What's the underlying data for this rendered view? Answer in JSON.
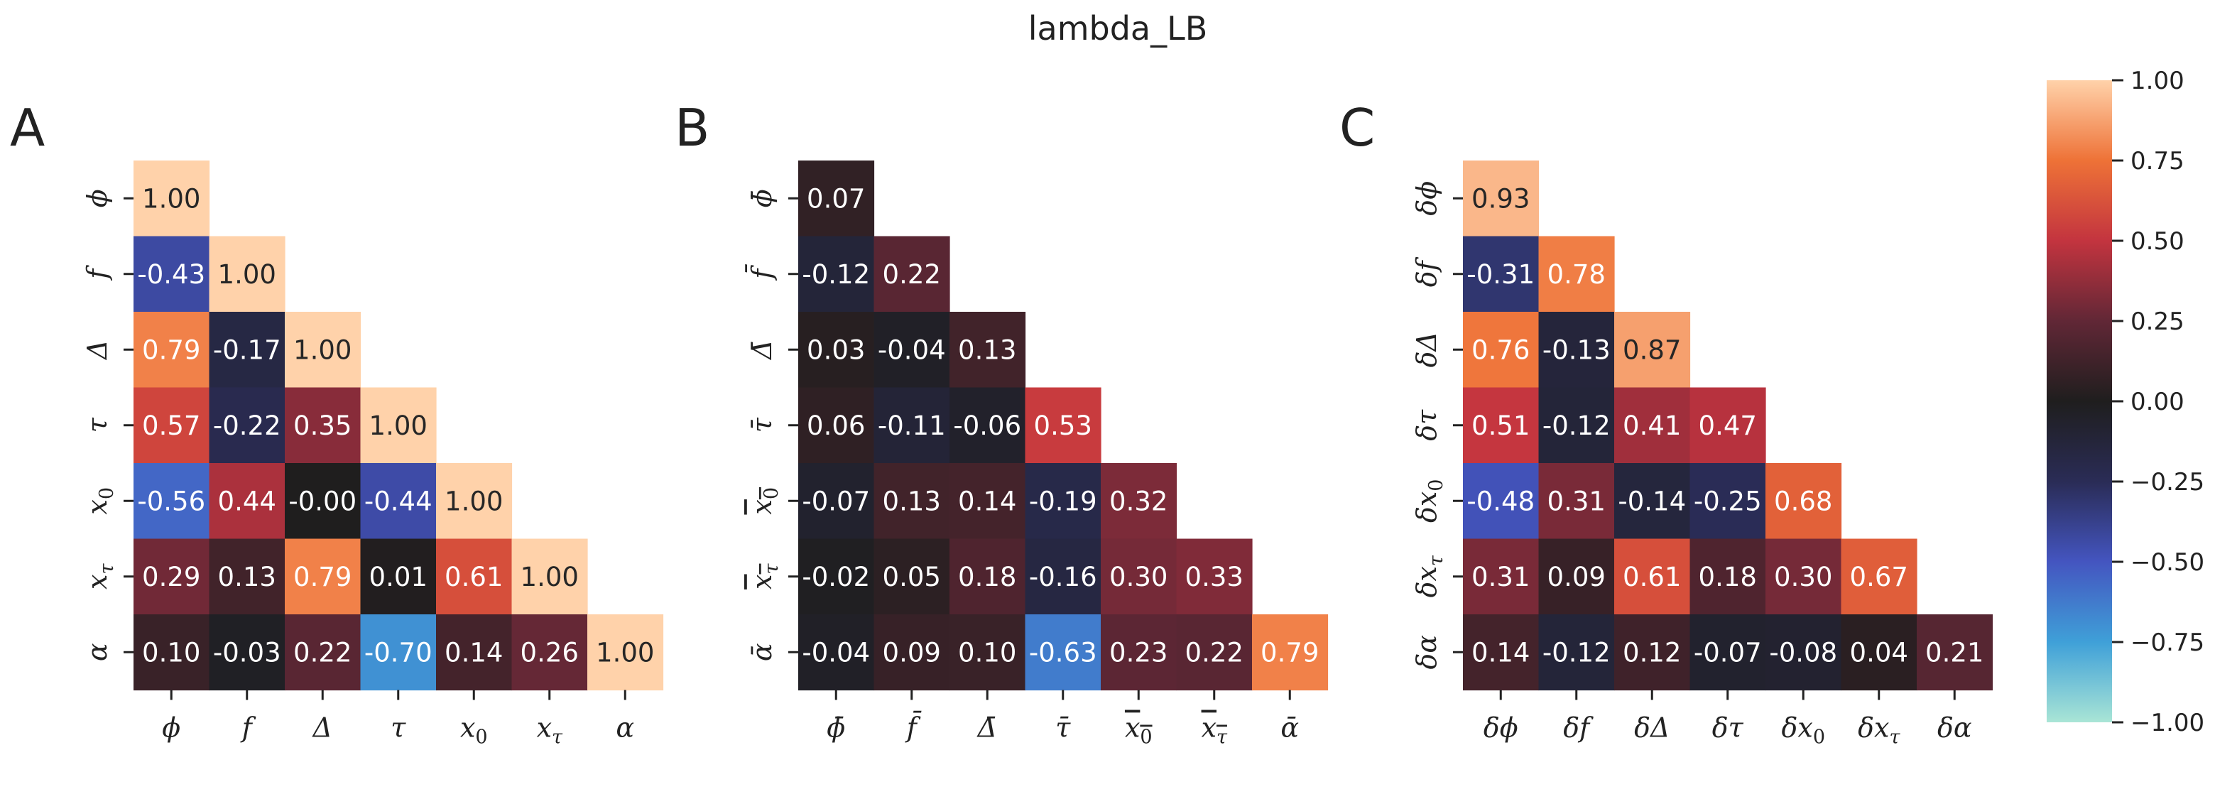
{
  "title": "lambda_LB",
  "chart_data": [
    {
      "type": "heatmap",
      "panel": "A",
      "mask": "lower-triangle",
      "categories": [
        "ϕ",
        "f",
        "Δ",
        "τ",
        "x₀",
        "x_τ",
        "α"
      ],
      "values": [
        [
          1.0
        ],
        [
          -0.43,
          1.0
        ],
        [
          0.79,
          -0.17,
          1.0
        ],
        [
          0.57,
          -0.22,
          0.35,
          1.0
        ],
        [
          -0.56,
          0.44,
          -0.0,
          -0.44,
          1.0
        ],
        [
          0.29,
          0.13,
          0.79,
          0.01,
          0.61,
          1.0
        ],
        [
          0.1,
          -0.03,
          0.22,
          -0.7,
          0.14,
          0.26,
          1.0
        ]
      ],
      "labels": [
        [
          "1.00"
        ],
        [
          "-0.43",
          "1.00"
        ],
        [
          "0.79",
          "-0.17",
          "1.00"
        ],
        [
          "0.57",
          "-0.22",
          "0.35",
          "1.00"
        ],
        [
          "-0.56",
          "0.44",
          "-0.00",
          "-0.44",
          "1.00"
        ],
        [
          "0.29",
          "0.13",
          "0.79",
          "0.01",
          "0.61",
          "1.00"
        ],
        [
          "0.10",
          "-0.03",
          "0.22",
          "-0.70",
          "0.14",
          "0.26",
          "1.00"
        ]
      ]
    },
    {
      "type": "heatmap",
      "panel": "B",
      "mask": "lower-triangle",
      "categories": [
        "ϕ̄",
        "f̄",
        "Δ̄",
        "τ̄",
        "x₀ (overline)",
        "x_τ (overline)",
        "ᾱ"
      ],
      "values": [
        [
          0.07
        ],
        [
          -0.12,
          0.22
        ],
        [
          0.03,
          -0.04,
          0.13
        ],
        [
          0.06,
          -0.11,
          -0.06,
          0.53
        ],
        [
          -0.07,
          0.13,
          0.14,
          -0.19,
          0.32
        ],
        [
          -0.02,
          0.05,
          0.18,
          -0.16,
          0.3,
          0.33
        ],
        [
          -0.04,
          0.09,
          0.1,
          -0.63,
          0.23,
          0.22,
          0.79
        ]
      ],
      "labels": [
        [
          "0.07"
        ],
        [
          "-0.12",
          "0.22"
        ],
        [
          "0.03",
          "-0.04",
          "0.13"
        ],
        [
          "0.06",
          "-0.11",
          "-0.06",
          "0.53"
        ],
        [
          "-0.07",
          "0.13",
          "0.14",
          "-0.19",
          "0.32"
        ],
        [
          "-0.02",
          "0.05",
          "0.18",
          "-0.16",
          "0.30",
          "0.33"
        ],
        [
          "-0.04",
          "0.09",
          "0.10",
          "-0.63",
          "0.23",
          "0.22",
          "0.79"
        ]
      ]
    },
    {
      "type": "heatmap",
      "panel": "C",
      "mask": "lower-triangle",
      "categories": [
        "δϕ",
        "δf",
        "δΔ",
        "δτ",
        "δx₀",
        "δx_τ",
        "δα"
      ],
      "values": [
        [
          0.93
        ],
        [
          -0.31,
          0.78
        ],
        [
          0.76,
          -0.13,
          0.87
        ],
        [
          0.51,
          -0.12,
          0.41,
          0.47
        ],
        [
          -0.48,
          0.31,
          -0.14,
          -0.25,
          0.68
        ],
        [
          0.31,
          0.09,
          0.61,
          0.18,
          0.3,
          0.67
        ],
        [
          0.14,
          -0.12,
          0.12,
          -0.07,
          -0.08,
          0.04,
          0.21
        ]
      ],
      "labels": [
        [
          "0.93"
        ],
        [
          "-0.31",
          "0.78"
        ],
        [
          "0.76",
          "-0.13",
          "0.87"
        ],
        [
          "0.51",
          "-0.12",
          "0.41",
          "0.47"
        ],
        [
          "-0.48",
          "0.31",
          "-0.14",
          "-0.25",
          "0.68"
        ],
        [
          "0.31",
          "0.09",
          "0.61",
          "0.18",
          "0.30",
          "0.67"
        ],
        [
          "0.14",
          "-0.12",
          "0.12",
          "-0.07",
          "-0.08",
          "0.04",
          "0.21"
        ]
      ]
    }
  ],
  "colorbar": {
    "colormap": "icefire",
    "range": [
      -1.0,
      1.0
    ],
    "ticks": [
      1.0,
      0.75,
      0.5,
      0.25,
      0.0,
      -0.25,
      -0.5,
      -0.75,
      -1.0
    ],
    "tick_labels": [
      "1.00",
      "0.75",
      "0.50",
      "0.25",
      "0.00",
      "−0.25",
      "−0.50",
      "−0.75",
      "−1.00"
    ],
    "stops": [
      {
        "v": -1.0,
        "color": "#a9e5d6"
      },
      {
        "v": -0.75,
        "color": "#3fa0d8"
      },
      {
        "v": -0.5,
        "color": "#4455c0"
      },
      {
        "v": -0.25,
        "color": "#2a2c56"
      },
      {
        "v": 0.0,
        "color": "#1f1e1e"
      },
      {
        "v": 0.25,
        "color": "#612736"
      },
      {
        "v": 0.5,
        "color": "#c3343f"
      },
      {
        "v": 0.75,
        "color": "#ee7237"
      },
      {
        "v": 1.0,
        "color": "#ffd2aa"
      }
    ]
  }
}
